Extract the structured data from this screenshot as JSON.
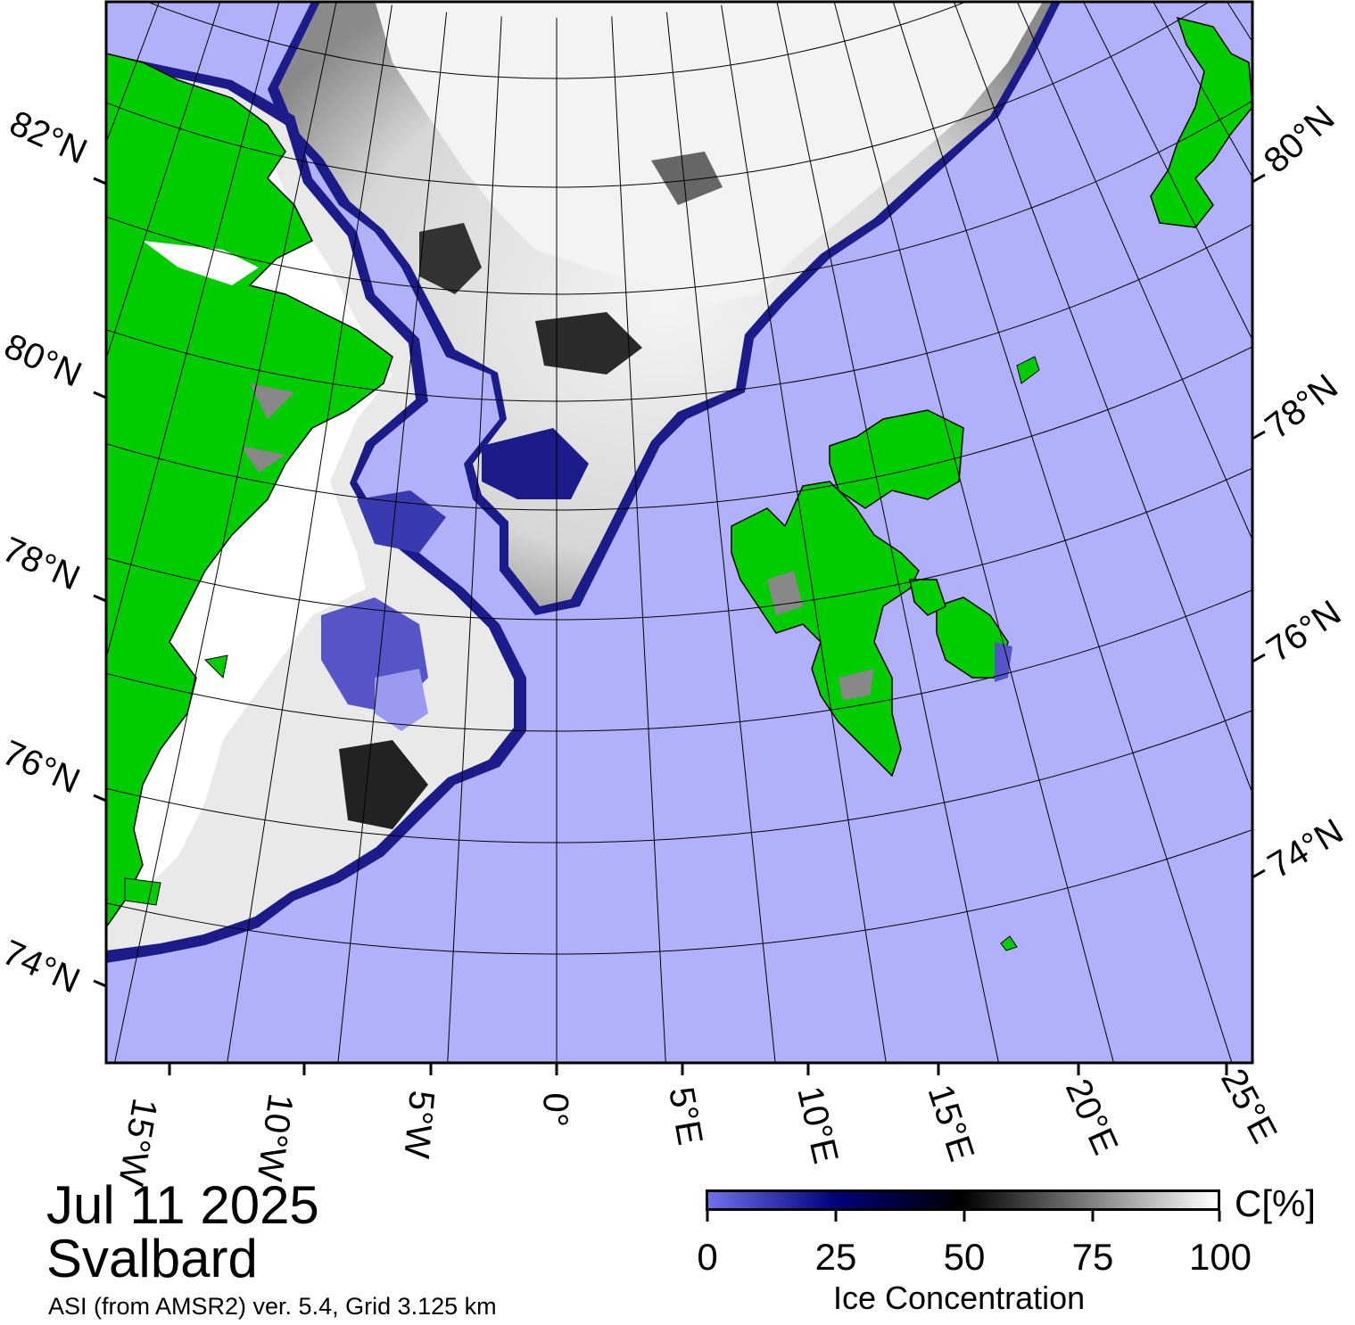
{
  "title": {
    "date": "Jul 11 2025",
    "region": "Svalbard",
    "source": "ASI (from AMSR2) ver. 5.4,  Grid 3.125 km"
  },
  "map": {
    "longitude_labels": [
      "15°W",
      "10°W",
      "5°W",
      "0°",
      "5°E",
      "10°E",
      "15°E",
      "20°E",
      "25°E"
    ],
    "latitude_labels_left": [
      "82°N",
      "80°N",
      "78°N",
      "76°N",
      "74°N"
    ],
    "latitude_labels_right": [
      "80°N",
      "78°N",
      "76°N",
      "74°N"
    ]
  },
  "colorbar": {
    "unit": "C[%]",
    "title": "Ice Concentration",
    "ticks": [
      "0",
      "25",
      "50",
      "75",
      "100"
    ],
    "stops": [
      "#6f6fea",
      "#00007a",
      "#000000",
      "#ffffff"
    ]
  },
  "colors": {
    "water": "#b0b0fb",
    "land": "#00cc00",
    "ice_full": "#ffffff",
    "ice_edge": "#00007a",
    "coast": "#000000"
  }
}
